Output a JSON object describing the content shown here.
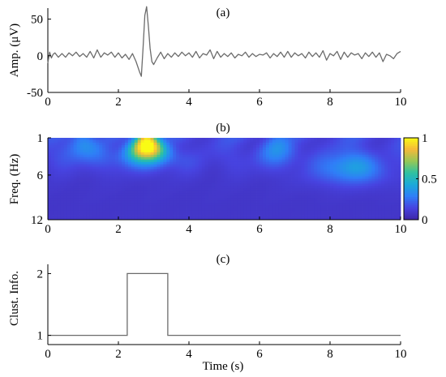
{
  "chart_data": [
    {
      "panel_label": "(a)",
      "type": "line",
      "xlabel": "",
      "ylabel": "Amp. (μV)",
      "xlim": [
        0,
        10
      ],
      "ylim": [
        -50,
        65
      ],
      "xticks": [
        0,
        2,
        4,
        6,
        8,
        10
      ],
      "yticks": [
        50,
        0,
        -50
      ],
      "line_color": "#6b6b6b",
      "series": [
        {
          "x": [
            0,
            0.05,
            0.1,
            0.15,
            0.2,
            0.3,
            0.4,
            0.5,
            0.6,
            0.7,
            0.8,
            0.9,
            1.0,
            1.1,
            1.2,
            1.3,
            1.4,
            1.5,
            1.6,
            1.7,
            1.8,
            1.9,
            2.0,
            2.1,
            2.2,
            2.3,
            2.4,
            2.5,
            2.6,
            2.65,
            2.7,
            2.75,
            2.8,
            2.85,
            2.9,
            2.95,
            3.0,
            3.1,
            3.2,
            3.3,
            3.4,
            3.5,
            3.6,
            3.7,
            3.8,
            3.9,
            4.0,
            4.1,
            4.2,
            4.3,
            4.4,
            4.5,
            4.6,
            4.7,
            4.8,
            4.9,
            5.0,
            5.1,
            5.2,
            5.3,
            5.4,
            5.5,
            5.6,
            5.7,
            5.8,
            5.9,
            6.0,
            6.1,
            6.2,
            6.3,
            6.4,
            6.5,
            6.6,
            6.7,
            6.8,
            6.9,
            7.0,
            7.1,
            7.2,
            7.3,
            7.4,
            7.5,
            7.6,
            7.7,
            7.8,
            7.9,
            8.0,
            8.1,
            8.2,
            8.3,
            8.4,
            8.5,
            8.6,
            8.7,
            8.8,
            8.9,
            9.0,
            9.1,
            9.2,
            9.3,
            9.4,
            9.5,
            9.6,
            9.7,
            9.8,
            9.9,
            10.0
          ],
          "y": [
            -10,
            5,
            -3,
            2,
            4,
            -2,
            3,
            -2,
            4,
            0,
            5,
            -1,
            3,
            -2,
            6,
            -3,
            8,
            -2,
            4,
            1,
            5,
            -2,
            4,
            -3,
            2,
            -5,
            3,
            -8,
            -22,
            -28,
            10,
            55,
            67,
            40,
            10,
            -8,
            -12,
            -3,
            5,
            -4,
            3,
            -2,
            4,
            -1,
            5,
            0,
            4,
            -2,
            6,
            -3,
            3,
            1,
            8,
            -4,
            6,
            -2,
            3,
            -1,
            4,
            -3,
            2,
            0,
            5,
            -2,
            3,
            -1,
            2,
            1,
            4,
            -3,
            3,
            -1,
            5,
            -2,
            6,
            -2,
            4,
            0,
            3,
            -3,
            5,
            -1,
            4,
            -2,
            7,
            -6,
            3,
            0,
            6,
            -5,
            5,
            -2,
            4,
            1,
            3,
            -4,
            4,
            -1,
            5,
            -2,
            4,
            -8,
            2,
            0,
            -4,
            3,
            6
          ]
        }
      ]
    },
    {
      "panel_label": "(b)",
      "type": "heatmap",
      "xlabel": "",
      "ylabel": "Freq. (Hz)",
      "xlim": [
        0,
        10
      ],
      "ylim": [
        1,
        12
      ],
      "xticks": [
        0,
        2,
        4,
        6,
        8,
        10
      ],
      "yticks": [
        1,
        6,
        12
      ],
      "colorbar_ticks": [
        1,
        0.5,
        0
      ],
      "colorbar_range": [
        0,
        1
      ],
      "colormap": [
        "#3e26a8",
        "#4743e0",
        "#2f7ef7",
        "#1ba9da",
        "#2fc1a1",
        "#95c757",
        "#f5b93a",
        "#f9fb15"
      ],
      "hotspots": [
        {
          "x": 2.8,
          "freq": 2.0,
          "value": 1.0
        },
        {
          "x": 8.6,
          "freq": 5.0,
          "value": 0.28
        },
        {
          "x": 1.0,
          "freq": 2.0,
          "value": 0.22
        },
        {
          "x": 6.5,
          "freq": 2.5,
          "value": 0.18
        }
      ]
    },
    {
      "panel_label": "(c)",
      "type": "line",
      "xlabel": "Time (s)",
      "ylabel": "Clust. Info.",
      "xlim": [
        0,
        10
      ],
      "ylim": [
        0.85,
        2.15
      ],
      "xticks": [
        0,
        2,
        4,
        6,
        8,
        10
      ],
      "yticks": [
        2,
        1
      ],
      "line_color": "#6b6b6b",
      "series": [
        {
          "x": [
            0,
            2.25,
            2.25,
            3.4,
            3.4,
            10
          ],
          "y": [
            1,
            1,
            2,
            2,
            1,
            1
          ]
        }
      ]
    }
  ]
}
